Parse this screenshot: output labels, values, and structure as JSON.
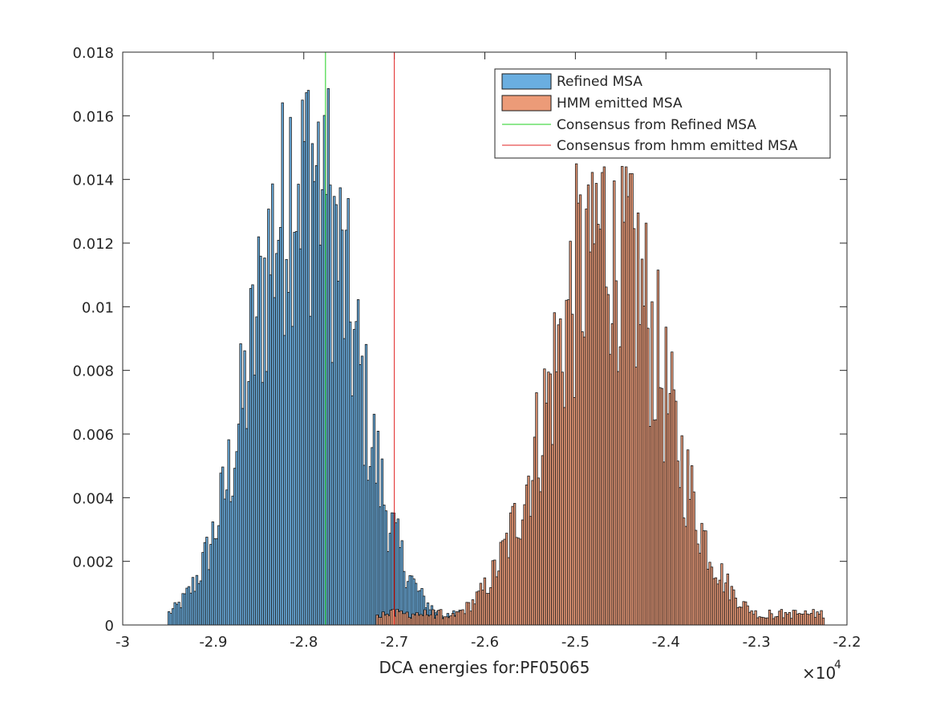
{
  "chart_data": {
    "type": "bar",
    "subtype": "histogram",
    "title": "",
    "xlabel": "DCA energies for:PF05065",
    "ylabel": "",
    "x_exponent_label": "×10",
    "x_exponent_power": "4",
    "xlim": [
      -3.0,
      -2.2
    ],
    "ylim": [
      0,
      0.018
    ],
    "x_unit_scale": 10000,
    "x_ticks": [
      "-3",
      "-2.9",
      "-2.8",
      "-2.7",
      "-2.6",
      "-2.5",
      "-2.4",
      "-2.3",
      "-2.2"
    ],
    "y_ticks": [
      "0",
      "0.002",
      "0.004",
      "0.006",
      "0.008",
      "0.01",
      "0.012",
      "0.014",
      "0.016",
      "0.018"
    ],
    "grid": false,
    "box": true,
    "legend_position": "top-right",
    "series": [
      {
        "name": "Refined MSA",
        "kind": "histogram",
        "color": "#6aaee0",
        "edge_color": "#1a1a1a",
        "center": -2.8,
        "stddev": 0.055,
        "peak": 0.0174,
        "x_range": [
          -2.95,
          -2.625
        ],
        "bin_width": 0.0022
      },
      {
        "name": "HMM emitted MSA",
        "kind": "histogram",
        "color": "#ec9b78",
        "edge_color": "#1a1a1a",
        "center": -2.465,
        "stddev": 0.062,
        "peak": 0.0147,
        "x_range": [
          -2.72,
          -2.225
        ],
        "bin_width": 0.0022
      },
      {
        "name": "Consensus from Refined MSA",
        "kind": "vline",
        "color": "#1fd11f",
        "x": -2.776
      },
      {
        "name": "Consensus from hmm emitted MSA",
        "kind": "vline",
        "color": "#e02020",
        "x": -2.7
      }
    ]
  }
}
